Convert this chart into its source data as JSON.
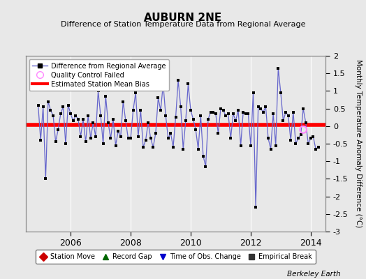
{
  "title": "AUBURN 2NE",
  "subtitle": "Difference of Station Temperature Data from Regional Average",
  "ylabel": "Monthly Temperature Anomaly Difference (°C)",
  "xlabel_credit": "Berkeley Earth",
  "ylim": [
    -3,
    2
  ],
  "yticks": [
    -3,
    -2.5,
    -2,
    -1.5,
    -1,
    -0.5,
    0,
    0.5,
    1,
    1.5,
    2
  ],
  "xmin": 2004.5,
  "xmax": 2014.5,
  "xticks": [
    2006,
    2008,
    2010,
    2012,
    2014
  ],
  "mean_bias": 0.04,
  "outer_bg": "#e8e8e8",
  "plot_bg": "#e8e8e8",
  "grid_color": "#ffffff",
  "line_color": "#6666cc",
  "marker_color": "#000000",
  "bias_color": "#ff0000",
  "qc_color": "#ff88ff",
  "data_x": [
    2004.917,
    2005.0,
    2005.083,
    2005.167,
    2005.25,
    2005.333,
    2005.417,
    2005.5,
    2005.583,
    2005.667,
    2005.75,
    2005.833,
    2005.917,
    2006.0,
    2006.083,
    2006.167,
    2006.25,
    2006.333,
    2006.417,
    2006.5,
    2006.583,
    2006.667,
    2006.75,
    2006.833,
    2006.917,
    2007.0,
    2007.083,
    2007.167,
    2007.25,
    2007.333,
    2007.417,
    2007.5,
    2007.583,
    2007.667,
    2007.75,
    2007.833,
    2007.917,
    2008.0,
    2008.083,
    2008.167,
    2008.25,
    2008.333,
    2008.417,
    2008.5,
    2008.583,
    2008.667,
    2008.75,
    2008.833,
    2008.917,
    2009.0,
    2009.083,
    2009.167,
    2009.25,
    2009.333,
    2009.417,
    2009.5,
    2009.583,
    2009.667,
    2009.75,
    2009.833,
    2009.917,
    2010.0,
    2010.083,
    2010.167,
    2010.25,
    2010.333,
    2010.417,
    2010.5,
    2010.583,
    2010.667,
    2010.75,
    2010.833,
    2010.917,
    2011.0,
    2011.083,
    2011.167,
    2011.25,
    2011.333,
    2011.417,
    2011.5,
    2011.583,
    2011.667,
    2011.75,
    2011.833,
    2011.917,
    2012.0,
    2012.083,
    2012.167,
    2012.25,
    2012.333,
    2012.417,
    2012.5,
    2012.583,
    2012.667,
    2012.75,
    2012.833,
    2012.917,
    2013.0,
    2013.083,
    2013.167,
    2013.25,
    2013.333,
    2013.417,
    2013.5,
    2013.583,
    2013.667,
    2013.75,
    2013.833,
    2013.917,
    2014.0,
    2014.083,
    2014.167,
    2014.25
  ],
  "data_y": [
    0.6,
    -0.4,
    0.55,
    -1.5,
    0.7,
    0.45,
    0.3,
    -0.45,
    -0.1,
    0.35,
    0.55,
    -0.5,
    0.6,
    0.35,
    0.15,
    0.3,
    0.2,
    -0.3,
    0.2,
    -0.45,
    0.3,
    -0.35,
    0.1,
    -0.3,
    1.0,
    0.3,
    -0.5,
    0.85,
    0.1,
    -0.35,
    0.2,
    -0.55,
    -0.15,
    -0.3,
    0.7,
    0.15,
    -0.35,
    -0.35,
    0.45,
    0.95,
    -0.3,
    0.45,
    -0.6,
    -0.4,
    0.1,
    -0.35,
    -0.6,
    -0.2,
    0.8,
    0.45,
    1.2,
    0.3,
    -0.35,
    -0.2,
    -0.6,
    0.25,
    1.3,
    0.55,
    -0.65,
    0.15,
    1.2,
    0.45,
    0.2,
    -0.1,
    -0.65,
    0.3,
    -0.85,
    -1.15,
    0.2,
    0.4,
    0.4,
    0.35,
    -0.2,
    0.5,
    0.45,
    0.3,
    0.35,
    -0.35,
    0.35,
    0.15,
    0.45,
    -0.55,
    0.4,
    0.35,
    0.35,
    -0.55,
    0.95,
    -2.3,
    0.55,
    0.5,
    0.4,
    0.55,
    -0.35,
    -0.65,
    0.35,
    -0.55,
    1.65,
    0.95,
    0.15,
    0.4,
    0.3,
    -0.4,
    0.4,
    -0.5,
    -0.35,
    -0.25,
    0.5,
    0.1,
    -0.5,
    -0.35,
    -0.3,
    -0.65,
    -0.6
  ],
  "qc_failed_x": [
    2013.75
  ],
  "qc_failed_y": [
    -0.1
  ],
  "legend1_labels": [
    "Difference from Regional Average",
    "Quality Control Failed",
    "Estimated Station Mean Bias"
  ],
  "legend2_labels": [
    "Station Move",
    "Record Gap",
    "Time of Obs. Change",
    "Empirical Break"
  ],
  "legend2_colors": [
    "#cc0000",
    "#006600",
    "#0000cc",
    "#333333"
  ],
  "legend2_markers": [
    "D",
    "^",
    "v",
    "s"
  ]
}
